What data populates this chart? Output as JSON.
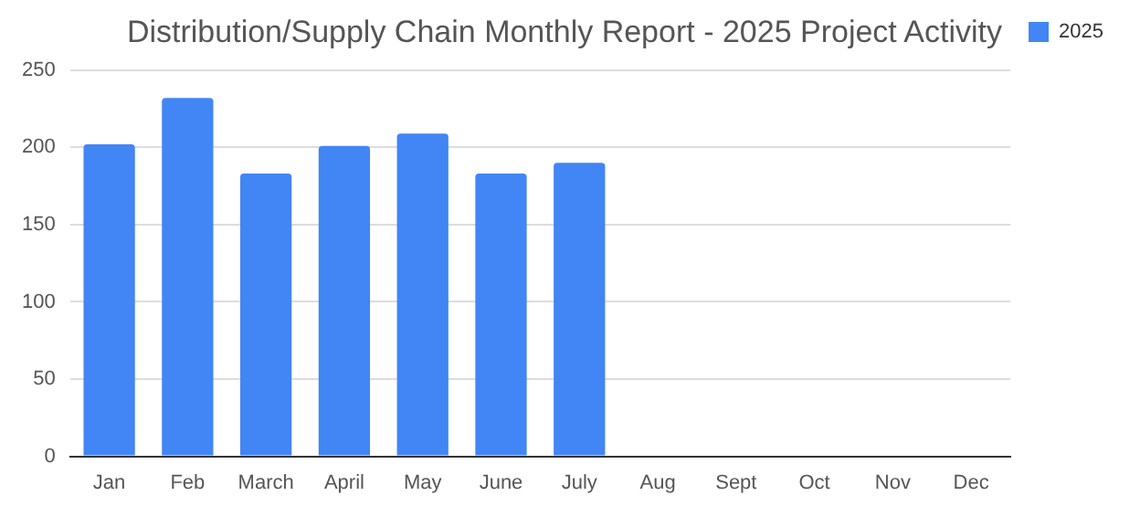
{
  "chart_data": {
    "type": "bar",
    "title": "Distribution/Supply Chain Monthly Report - 2025 Project Activity",
    "categories": [
      "Jan",
      "Feb",
      "March",
      "April",
      "May",
      "June",
      "July",
      "Aug",
      "Sept",
      "Oct",
      "Nov",
      "Dec"
    ],
    "series": [
      {
        "name": "2025",
        "color": "#4285f4",
        "values": [
          202,
          232,
          183,
          201,
          209,
          183,
          190,
          null,
          null,
          null,
          null,
          null
        ]
      }
    ],
    "ylim": [
      0,
      250
    ],
    "yticks": [
      0,
      50,
      100,
      150,
      200,
      250
    ],
    "grid": "y",
    "legend": "right"
  }
}
